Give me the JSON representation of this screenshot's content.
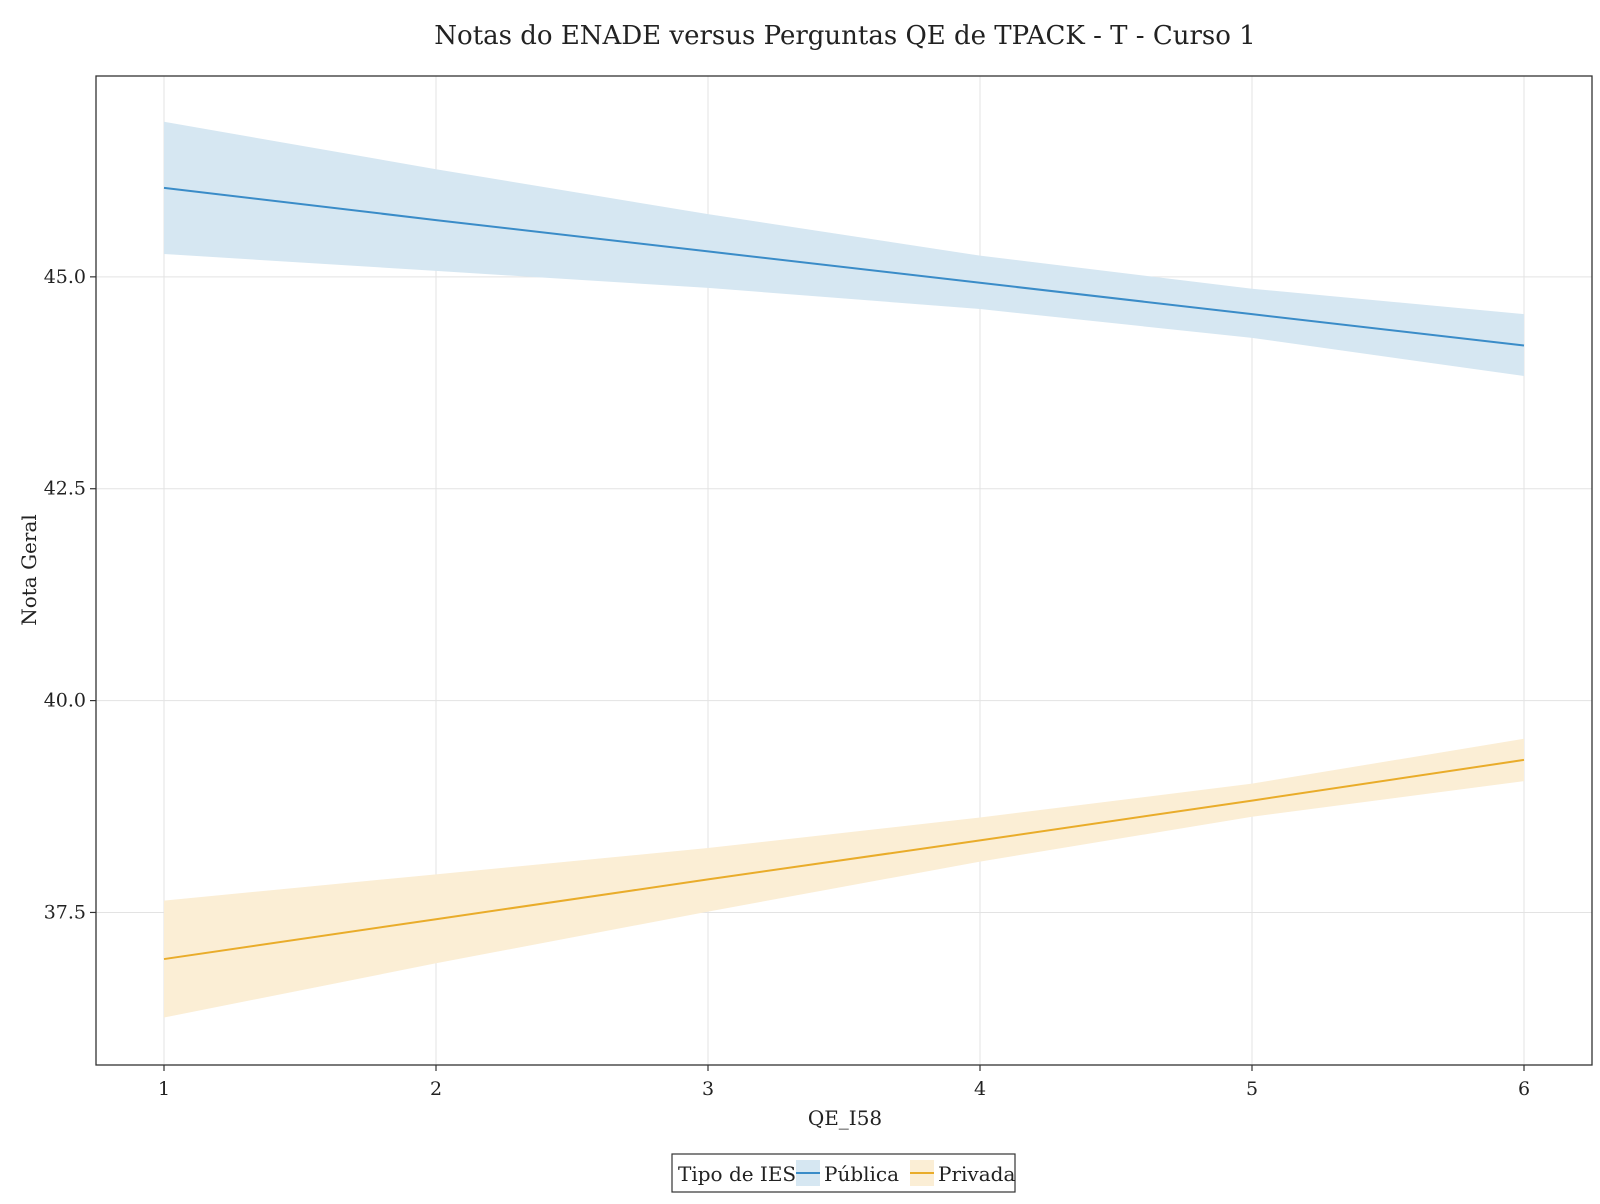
{
  "chart_data": {
    "type": "line",
    "title": "Notas do ENADE versus Perguntas QE de TPACK - T - Curso 1",
    "xlabel": "QE_I58",
    "ylabel": "Nota Geral",
    "x_ticks": [
      1,
      2,
      3,
      4,
      5,
      6
    ],
    "x_tick_labels": [
      "1",
      "2",
      "3",
      "4",
      "5",
      "6"
    ],
    "y_ticks": [
      37.5,
      40.0,
      42.5,
      45.0
    ],
    "y_tick_labels": [
      "37.5",
      "40.0",
      "42.5",
      "45.0"
    ],
    "xlim": [
      0.75,
      6.25
    ],
    "ylim": [
      35.7,
      47.37
    ],
    "grid": true,
    "legend": {
      "title": "Tipo de IES",
      "placement": "bottom-center"
    },
    "series": [
      {
        "name": "Pública",
        "color": "#3a8cc8",
        "band_color": "#d6e7f2",
        "x": [
          1,
          2,
          3,
          4,
          5,
          6
        ],
        "y": [
          46.05,
          45.67,
          45.3,
          44.93,
          44.56,
          44.19
        ],
        "lower": [
          45.27,
          45.07,
          44.87,
          44.62,
          44.28,
          43.83
        ],
        "upper": [
          46.83,
          46.27,
          45.74,
          45.25,
          44.86,
          44.56
        ]
      },
      {
        "name": "Privada",
        "color": "#e9ac2a",
        "band_color": "#fbeed5",
        "x": [
          1,
          2,
          3,
          4,
          5,
          6
        ],
        "y": [
          36.95,
          37.42,
          37.89,
          38.35,
          38.82,
          39.3
        ],
        "lower": [
          36.26,
          36.9,
          37.51,
          38.1,
          38.63,
          39.05
        ],
        "upper": [
          37.64,
          37.95,
          38.26,
          38.62,
          39.02,
          39.55
        ]
      }
    ]
  }
}
